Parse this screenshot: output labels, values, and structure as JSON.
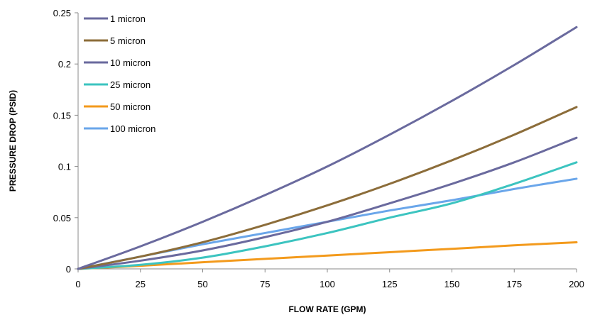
{
  "chart_data": {
    "type": "line",
    "xlabel": "FLOW RATE (GPM)",
    "ylabel": "PRESSURE DROP (PSID)",
    "xlim": [
      0,
      200
    ],
    "ylim": [
      0,
      0.25
    ],
    "x_ticks": [
      "0",
      "25",
      "50",
      "75",
      "100",
      "125",
      "150",
      "175",
      "200"
    ],
    "y_ticks": [
      "0",
      "0.05",
      "0.1",
      "0.15",
      "0.2",
      "0.25"
    ],
    "grid": false,
    "legend_position": "top-left",
    "x": [
      0,
      25,
      50,
      75,
      100,
      125,
      150,
      175,
      200
    ],
    "series": [
      {
        "name": "1 micron",
        "color": "#6a6a9e",
        "values": [
          0,
          0.022,
          0.046,
          0.072,
          0.1,
          0.131,
          0.164,
          0.199,
          0.236
        ]
      },
      {
        "name": "5 micron",
        "color": "#8c6d3a",
        "values": [
          0,
          0.012,
          0.026,
          0.043,
          0.062,
          0.083,
          0.106,
          0.131,
          0.158
        ]
      },
      {
        "name": "10 micron",
        "color": "#6a6a9e",
        "values": [
          0,
          0.008,
          0.018,
          0.031,
          0.046,
          0.064,
          0.083,
          0.104,
          0.128
        ]
      },
      {
        "name": "25 micron",
        "color": "#3cc4c0",
        "values": [
          0,
          0.004,
          0.011,
          0.022,
          0.035,
          0.05,
          0.064,
          0.083,
          0.104
        ]
      },
      {
        "name": "50 micron",
        "color": "#f39a1c",
        "values": [
          0,
          0.003,
          0.0065,
          0.0098,
          0.013,
          0.0163,
          0.0196,
          0.023,
          0.026
        ]
      },
      {
        "name": "100 micron",
        "color": "#6aa6ea",
        "values": [
          0,
          0.012,
          0.024,
          0.035,
          0.046,
          0.057,
          0.067,
          0.078,
          0.088
        ]
      }
    ]
  }
}
